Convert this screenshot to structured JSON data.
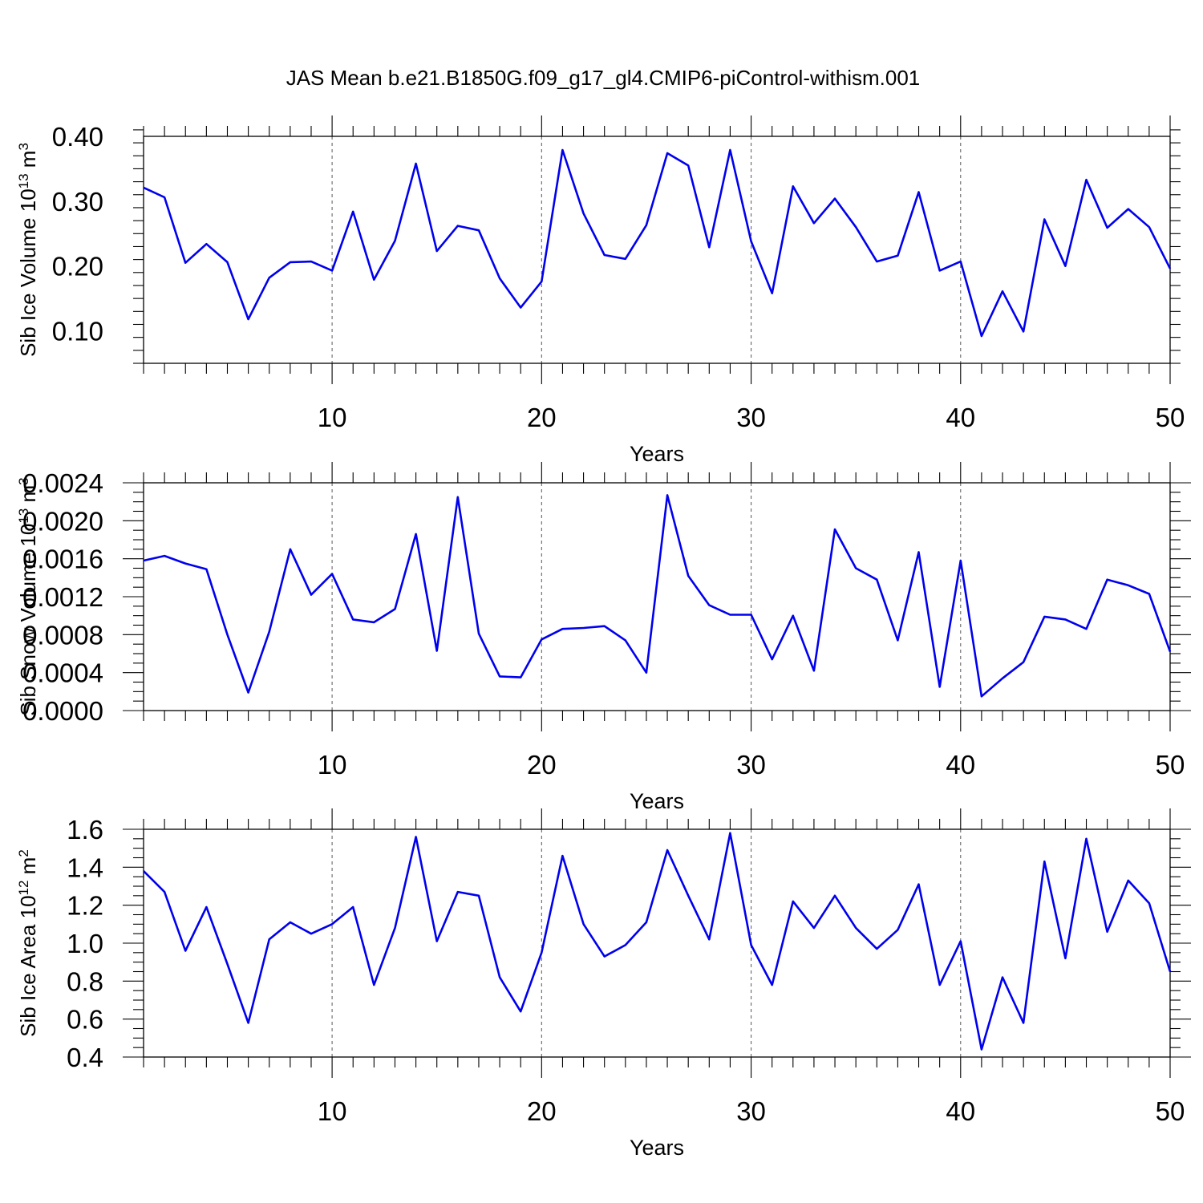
{
  "title": "JAS Mean b.e21.B1850G.f09_g17_gl4.CMIP6-piControl-withism.001",
  "colors": {
    "line": "#0000ee",
    "axis": "#000000",
    "grid": "#666666"
  },
  "chart_data": [
    {
      "type": "line",
      "name": "sib-ice-volume",
      "ylabel_main": "Sib Ice Volume 10",
      "ylabel_exp": "13",
      "ylabel_unit": " m",
      "ylabel_unit_exp": "3",
      "xlabel": "Years",
      "xlim": [
        1,
        50
      ],
      "ylim": [
        0.05,
        0.4
      ],
      "xticks": [
        10,
        20,
        30,
        40,
        50
      ],
      "xtick_labels": [
        "10",
        "20",
        "30",
        "40",
        "50"
      ],
      "yticks": [
        0.1,
        0.2,
        0.3,
        0.4
      ],
      "ytick_labels": [
        "0.10",
        "0.20",
        "0.30",
        "0.40"
      ],
      "yminor_step": 0.02,
      "grid_x": [
        10,
        20,
        30,
        40
      ],
      "x": [
        1,
        2,
        3,
        4,
        5,
        6,
        7,
        8,
        9,
        10,
        11,
        12,
        13,
        14,
        15,
        16,
        17,
        18,
        19,
        20,
        21,
        22,
        23,
        24,
        25,
        26,
        27,
        28,
        29,
        30,
        31,
        32,
        33,
        34,
        35,
        36,
        37,
        38,
        39,
        40,
        41,
        42,
        43,
        44,
        45,
        46,
        47,
        48,
        49,
        50
      ],
      "values": [
        0.321,
        0.306,
        0.205,
        0.234,
        0.206,
        0.118,
        0.182,
        0.206,
        0.207,
        0.193,
        0.284,
        0.179,
        0.239,
        0.358,
        0.223,
        0.262,
        0.255,
        0.181,
        0.136,
        0.176,
        0.379,
        0.281,
        0.217,
        0.211,
        0.263,
        0.374,
        0.355,
        0.229,
        0.379,
        0.238,
        0.158,
        0.323,
        0.266,
        0.304,
        0.26,
        0.207,
        0.216,
        0.314,
        0.193,
        0.207,
        0.092,
        0.161,
        0.099,
        0.272,
        0.2,
        0.333,
        0.259,
        0.288,
        0.26,
        0.196
      ]
    },
    {
      "type": "line",
      "name": "sib-snow-volume",
      "ylabel_main": "Sib Snow Volume 10",
      "ylabel_exp": "13",
      "ylabel_unit": " m",
      "ylabel_unit_exp": "3",
      "xlabel": "Years",
      "xlim": [
        1,
        50
      ],
      "ylim": [
        0.0,
        0.0024
      ],
      "xticks": [
        10,
        20,
        30,
        40,
        50
      ],
      "xtick_labels": [
        "10",
        "20",
        "30",
        "40",
        "50"
      ],
      "yticks": [
        0.0,
        0.0004,
        0.0008,
        0.0012,
        0.0016,
        0.002,
        0.0024
      ],
      "ytick_labels": [
        "0.0000",
        "0.0004",
        "0.0008",
        "0.0012",
        "0.0016",
        "0.0020",
        "0.0024"
      ],
      "yminor_step": 0.0001,
      "grid_x": [
        10,
        20,
        30,
        40
      ],
      "x": [
        1,
        2,
        3,
        4,
        5,
        6,
        7,
        8,
        9,
        10,
        11,
        12,
        13,
        14,
        15,
        16,
        17,
        18,
        19,
        20,
        21,
        22,
        23,
        24,
        25,
        26,
        27,
        28,
        29,
        30,
        31,
        32,
        33,
        34,
        35,
        36,
        37,
        38,
        39,
        40,
        41,
        42,
        43,
        44,
        45,
        46,
        47,
        48,
        49,
        50
      ],
      "values": [
        0.00158,
        0.00163,
        0.00155,
        0.00149,
        0.0008,
        0.00019,
        0.00083,
        0.0017,
        0.00122,
        0.00144,
        0.00096,
        0.00093,
        0.00107,
        0.00186,
        0.00063,
        0.00225,
        0.00081,
        0.00036,
        0.00035,
        0.00075,
        0.00086,
        0.00087,
        0.00089,
        0.00074,
        0.0004,
        0.00227,
        0.00142,
        0.00111,
        0.00101,
        0.00101,
        0.00054,
        0.001,
        0.00042,
        0.00191,
        0.0015,
        0.00138,
        0.00074,
        0.00167,
        0.00025,
        0.00158,
        0.00015,
        0.00034,
        0.00051,
        0.00099,
        0.00096,
        0.00086,
        0.00138,
        0.00132,
        0.00123,
        0.00062
      ]
    },
    {
      "type": "line",
      "name": "sib-ice-area",
      "ylabel_main": "Sib Ice Area 10",
      "ylabel_exp": "12",
      "ylabel_unit": " m",
      "ylabel_unit_exp": "2",
      "xlabel": "Years",
      "xlim": [
        1,
        50
      ],
      "ylim": [
        0.4,
        1.6
      ],
      "xticks": [
        10,
        20,
        30,
        40,
        50
      ],
      "xtick_labels": [
        "10",
        "20",
        "30",
        "40",
        "50"
      ],
      "yticks": [
        0.4,
        0.6,
        0.8,
        1.0,
        1.2,
        1.4,
        1.6
      ],
      "ytick_labels": [
        "0.4",
        "0.6",
        "0.8",
        "1.0",
        "1.2",
        "1.4",
        "1.6"
      ],
      "yminor_step": 0.05,
      "grid_x": [
        10,
        20,
        30,
        40
      ],
      "x": [
        1,
        2,
        3,
        4,
        5,
        6,
        7,
        8,
        9,
        10,
        11,
        12,
        13,
        14,
        15,
        16,
        17,
        18,
        19,
        20,
        21,
        22,
        23,
        24,
        25,
        26,
        27,
        28,
        29,
        30,
        31,
        32,
        33,
        34,
        35,
        36,
        37,
        38,
        39,
        40,
        41,
        42,
        43,
        44,
        45,
        46,
        47,
        48,
        49,
        50
      ],
      "values": [
        1.38,
        1.27,
        0.96,
        1.19,
        0.89,
        0.58,
        1.02,
        1.11,
        1.05,
        1.1,
        1.19,
        0.78,
        1.08,
        1.56,
        1.01,
        1.27,
        1.25,
        0.82,
        0.64,
        0.95,
        1.46,
        1.1,
        0.93,
        0.99,
        1.11,
        1.49,
        1.25,
        1.02,
        1.58,
        0.99,
        0.78,
        1.22,
        1.08,
        1.25,
        1.08,
        0.97,
        1.07,
        1.31,
        0.78,
        1.01,
        0.44,
        0.82,
        0.58,
        1.43,
        0.92,
        1.55,
        1.06,
        1.33,
        1.21,
        0.85
      ]
    }
  ]
}
